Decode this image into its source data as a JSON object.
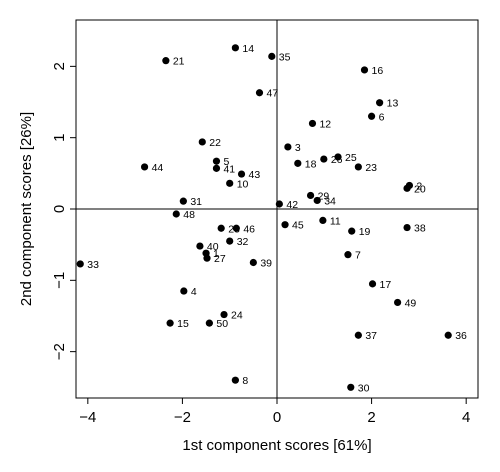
{
  "chart_data": {
    "type": "scatter",
    "xlabel": "1st component scores [61%]",
    "ylabel": "2nd component scores [26%]",
    "xlim": [
      -4.25,
      4.25
    ],
    "ylim": [
      -2.65,
      2.65
    ],
    "xticks": [
      -4,
      -2,
      0,
      2,
      4
    ],
    "yticks": [
      -2,
      -1,
      0,
      1,
      2
    ],
    "reference_lines": {
      "x": 0,
      "y": 0
    },
    "grid": false,
    "point_color": "#000000",
    "points": [
      {
        "label": "1",
        "x": -1.5,
        "y": -0.62
      },
      {
        "label": "2",
        "x": 2.8,
        "y": 0.33
      },
      {
        "label": "3",
        "x": 0.23,
        "y": 0.87
      },
      {
        "label": "4",
        "x": -1.97,
        "y": -1.15
      },
      {
        "label": "5",
        "x": -1.28,
        "y": 0.67
      },
      {
        "label": "6",
        "x": 2.0,
        "y": 1.3
      },
      {
        "label": "7",
        "x": 1.5,
        "y": -0.64
      },
      {
        "label": "8",
        "x": -0.88,
        "y": -2.4
      },
      {
        "label": "10",
        "x": -1.0,
        "y": 0.36
      },
      {
        "label": "11",
        "x": 0.97,
        "y": -0.16
      },
      {
        "label": "12",
        "x": 0.75,
        "y": 1.2
      },
      {
        "label": "13",
        "x": 2.17,
        "y": 1.49
      },
      {
        "label": "14",
        "x": -0.88,
        "y": 2.26
      },
      {
        "label": "15",
        "x": -2.26,
        "y": -1.6
      },
      {
        "label": "16",
        "x": 1.85,
        "y": 1.95
      },
      {
        "label": "17",
        "x": 2.02,
        "y": -1.05
      },
      {
        "label": "18",
        "x": 0.44,
        "y": 0.64
      },
      {
        "label": "19",
        "x": 1.58,
        "y": -0.31
      },
      {
        "label": "20",
        "x": 2.75,
        "y": 0.29
      },
      {
        "label": "21",
        "x": -2.35,
        "y": 2.08
      },
      {
        "label": "22",
        "x": -1.58,
        "y": 0.94
      },
      {
        "label": "23",
        "x": 1.72,
        "y": 0.59
      },
      {
        "label": "24",
        "x": -1.12,
        "y": -1.48
      },
      {
        "label": "25",
        "x": 1.29,
        "y": 0.73
      },
      {
        "label": "26",
        "x": 0.99,
        "y": 0.7
      },
      {
        "label": "27",
        "x": -1.48,
        "y": -0.69
      },
      {
        "label": "28",
        "x": -1.18,
        "y": -0.27
      },
      {
        "label": "29",
        "x": 0.71,
        "y": 0.19
      },
      {
        "label": "30",
        "x": 1.56,
        "y": -2.5
      },
      {
        "label": "31",
        "x": -1.98,
        "y": 0.11
      },
      {
        "label": "32",
        "x": -1.0,
        "y": -0.45
      },
      {
        "label": "33",
        "x": -4.16,
        "y": -0.77
      },
      {
        "label": "34",
        "x": 0.85,
        "y": 0.12
      },
      {
        "label": "35",
        "x": -0.11,
        "y": 2.14
      },
      {
        "label": "36",
        "x": 3.62,
        "y": -1.77
      },
      {
        "label": "37",
        "x": 1.72,
        "y": -1.77
      },
      {
        "label": "38",
        "x": 2.75,
        "y": -0.26
      },
      {
        "label": "39",
        "x": -0.5,
        "y": -0.75
      },
      {
        "label": "40",
        "x": -1.63,
        "y": -0.52
      },
      {
        "label": "41",
        "x": -1.28,
        "y": 0.57
      },
      {
        "label": "42",
        "x": 0.05,
        "y": 0.07
      },
      {
        "label": "43",
        "x": -0.75,
        "y": 0.49
      },
      {
        "label": "44",
        "x": -2.8,
        "y": 0.59
      },
      {
        "label": "45",
        "x": 0.17,
        "y": -0.22
      },
      {
        "label": "46",
        "x": -0.86,
        "y": -0.27
      },
      {
        "label": "47",
        "x": -0.37,
        "y": 1.63
      },
      {
        "label": "48",
        "x": -2.13,
        "y": -0.07
      },
      {
        "label": "49",
        "x": 2.55,
        "y": -1.31
      },
      {
        "label": "50",
        "x": -1.43,
        "y": -1.6
      }
    ]
  }
}
